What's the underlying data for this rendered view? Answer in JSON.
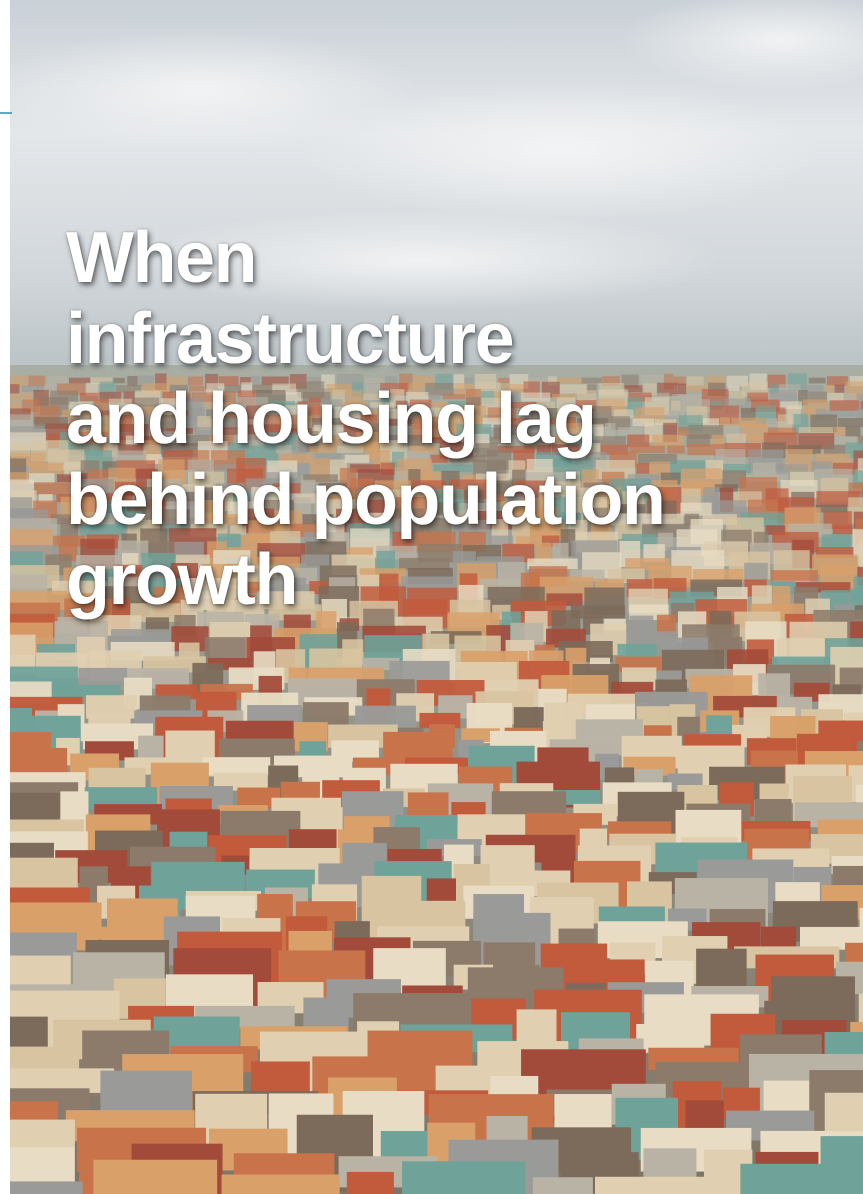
{
  "title": {
    "lines": [
      "When",
      "infrastructure",
      "and housing lag",
      "behind population",
      "growth"
    ]
  }
}
